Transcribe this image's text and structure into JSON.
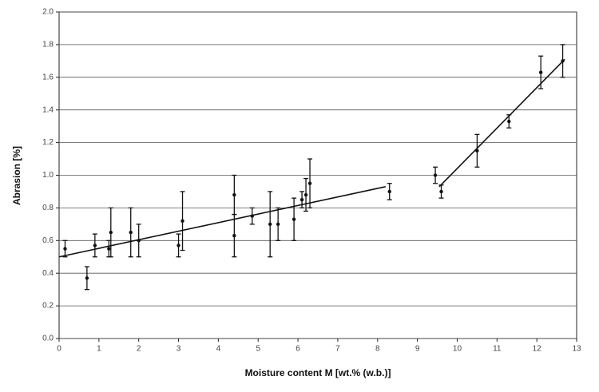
{
  "chart_data": {
    "type": "scatter",
    "x_label": "Moisture content M [wt.% (w.b.)]",
    "y_label": "Abrasion [%]",
    "xlim": [
      0,
      13
    ],
    "xticks": [
      0,
      1,
      2,
      3,
      4,
      5,
      6,
      7,
      8,
      9,
      10,
      11,
      12,
      13
    ],
    "ylim": [
      0,
      2
    ],
    "yticks": [
      {
        "value": 0,
        "label": "0.0"
      },
      0.2,
      0.4,
      0.6,
      0.8,
      {
        "value": 1,
        "label": "1.0"
      },
      1.2,
      1.4,
      1.6,
      1.8,
      {
        "value": 2,
        "label": "2.0"
      }
    ],
    "grid": true,
    "series": [
      {
        "color": "#111111",
        "x": [
          0.15,
          0.7,
          0.9,
          1.25,
          1.3,
          1.8,
          2.0,
          3.0,
          3.1,
          4.4,
          4.4,
          4.85,
          5.3,
          5.5,
          5.9,
          6.1,
          6.2,
          6.3,
          8.3,
          9.45,
          9.6,
          10.5,
          11.3,
          12.1,
          12.65
        ],
        "values": [
          0.55,
          0.37,
          0.57,
          0.55,
          0.65,
          0.65,
          0.6,
          0.57,
          0.72,
          0.88,
          0.63,
          0.75,
          0.7,
          0.7,
          0.73,
          0.85,
          0.88,
          0.95,
          0.9,
          1.0,
          0.9,
          1.15,
          1.33,
          1.63,
          1.7
        ],
        "errors": [
          0.05,
          0.07,
          0.07,
          0.05,
          0.15,
          0.15,
          0.1,
          0.07,
          0.18,
          0.12,
          0.13,
          0.05,
          0.2,
          0.1,
          0.13,
          0.05,
          0.1,
          0.15,
          0.05,
          0.05,
          0.04,
          0.1,
          0.04,
          0.1,
          0.1
        ]
      }
    ],
    "fits": [
      {
        "color": "#111111",
        "x": [
          0,
          8.2
        ],
        "values": [
          0.5,
          0.93
        ]
      },
      {
        "color": "#111111",
        "x": [
          9.55,
          12.7
        ],
        "values": [
          0.93,
          1.71
        ]
      }
    ]
  }
}
